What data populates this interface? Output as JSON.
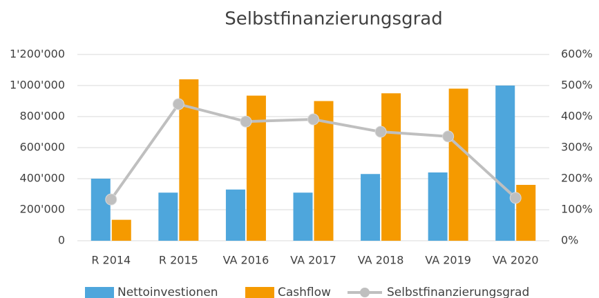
{
  "chart_data": {
    "type": "bar-line",
    "title": "Selbstfinanzierungsgrad",
    "categories": [
      "R 2014",
      "R 2015",
      "VA 2016",
      "VA 2017",
      "VA 2018",
      "VA 2019",
      "VA 2020"
    ],
    "series": [
      {
        "name": "Nettoinvestionen",
        "type": "bar",
        "color": "#4ea6dc",
        "values": [
          400000,
          310000,
          330000,
          310000,
          430000,
          440000,
          1000000
        ]
      },
      {
        "name": "Cashflow",
        "type": "bar",
        "color": "#f59a00",
        "values": [
          135000,
          1040000,
          935000,
          900000,
          950000,
          980000,
          360000
        ]
      },
      {
        "name": "Selbstfinanzierungsgrad",
        "type": "line",
        "axis": "y2",
        "color": "#bfbfbf",
        "values": [
          133,
          440,
          384,
          391,
          351,
          336,
          138
        ]
      }
    ],
    "ylim": [
      0,
      1200000
    ],
    "yticks": [
      0,
      {
        "value": 200000,
        "label": "200'000"
      },
      {
        "value": 400000,
        "label": "400'000"
      },
      {
        "value": 600000,
        "label": "600'000"
      },
      {
        "value": 800000,
        "label": "800'000"
      },
      {
        "value": 1000000,
        "label": "1'000'000"
      },
      {
        "value": 1200000,
        "label": "1'200'000"
      }
    ],
    "y2lim": [
      0,
      600
    ],
    "y2ticks": [
      {
        "value": 0,
        "label": "0%"
      },
      {
        "value": 100,
        "label": "100%"
      },
      {
        "value": 200,
        "label": "200%"
      },
      {
        "value": 300,
        "label": "300%"
      },
      {
        "value": 400,
        "label": "400%"
      },
      {
        "value": 500,
        "label": "500%"
      },
      {
        "value": 600,
        "label": "600%"
      }
    ],
    "grid": true,
    "legend": "bottom"
  }
}
